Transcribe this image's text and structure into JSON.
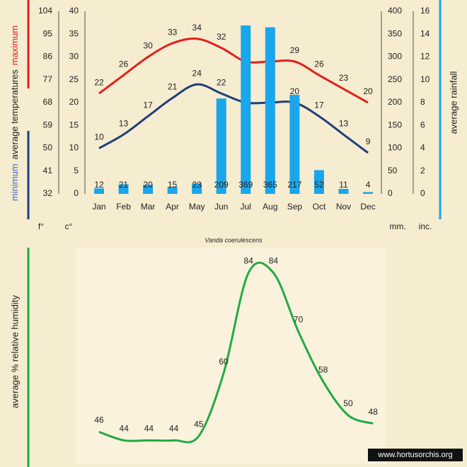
{
  "chart_data": [
    {
      "type": "combo",
      "ylabel": "average temperatures",
      "y2label": "average rainfall",
      "caption": "Vanda coerulescens",
      "categories": [
        "Jan",
        "Feb",
        "Mar",
        "Apr",
        "May",
        "Jun",
        "Jul",
        "Aug",
        "Sep",
        "Oct",
        "Nov",
        "Dec"
      ],
      "series": [
        {
          "name": "maximum",
          "type": "line",
          "color": "#e0201c",
          "values": [
            22,
            26,
            30,
            33,
            34,
            32,
            29,
            29,
            29,
            26,
            23,
            20
          ]
        },
        {
          "name": "minimum",
          "type": "line",
          "color": "#1f3f7a",
          "values": [
            10,
            13,
            17,
            21,
            24,
            22,
            20,
            20,
            20,
            17,
            13,
            9
          ]
        },
        {
          "name": "average rainfall",
          "type": "bar",
          "axis": "y2",
          "color": "#1aa6ea",
          "values": [
            12,
            21,
            20,
            15,
            23,
            209,
            369,
            365,
            217,
            52,
            11,
            4
          ]
        }
      ],
      "ylim": [
        0,
        40
      ],
      "yticks": [
        0,
        5,
        10,
        15,
        20,
        25,
        30,
        35,
        40
      ],
      "yunit": "c°",
      "flim": [
        32,
        104
      ],
      "fticks": [
        32,
        41,
        50,
        59,
        68,
        77,
        86,
        95,
        104
      ],
      "funit": "f°",
      "y2lim": [
        0,
        400
      ],
      "y2ticks": [
        0,
        50,
        100,
        150,
        200,
        250,
        300,
        350,
        400
      ],
      "y2unit": "mm.",
      "inlim": [
        0,
        16
      ],
      "inticks": [
        0,
        2,
        4,
        6,
        8,
        10,
        12,
        14,
        16
      ],
      "inunit": "inc."
    },
    {
      "type": "line",
      "ylabel": "average %  relative humidity",
      "categories": [
        null,
        null,
        null,
        null,
        null,
        null,
        null,
        null,
        null,
        null,
        null,
        null
      ],
      "series": [
        {
          "name": null,
          "color": "#22aa44",
          "values": [
            46,
            44,
            44,
            44,
            45,
            60,
            84,
            84,
            70,
            58,
            50,
            48
          ]
        }
      ],
      "ylim": [
        40,
        90
      ],
      "credit": "www.hortusorchis.org"
    }
  ]
}
